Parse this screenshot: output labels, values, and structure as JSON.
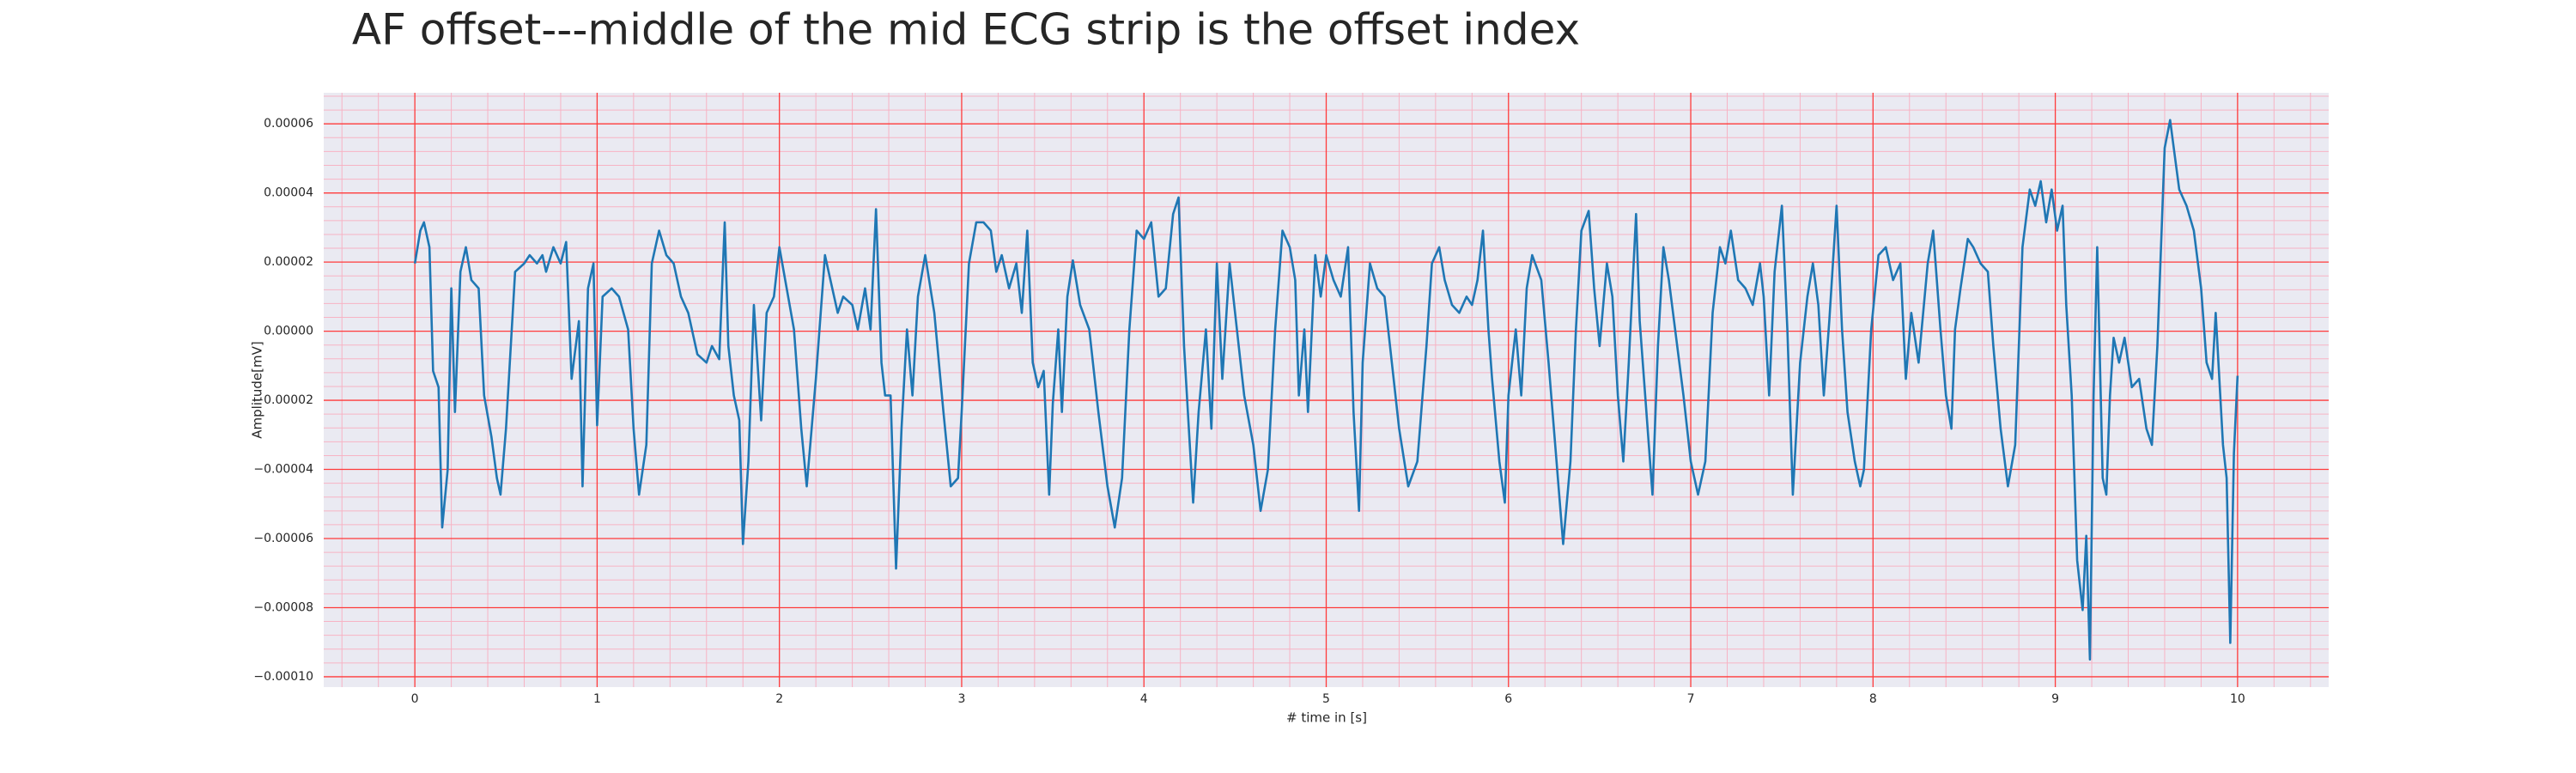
{
  "chart_data": {
    "type": "line",
    "title": "AF offset---middle of the mid ECG strip is the offset index",
    "xlabel": "# time in [s]",
    "ylabel": "Amplitude[mV]",
    "xlim": [
      -0.5,
      10.5
    ],
    "ylim": [
      -0.000103,
      6.9e-05
    ],
    "xticks": [
      0,
      1,
      2,
      3,
      4,
      5,
      6,
      7,
      8,
      9,
      10
    ],
    "yticks": [
      {
        "value": -0.0001,
        "label": "−0.00010"
      },
      {
        "value": -8e-05,
        "label": "−0.00008"
      },
      {
        "value": -6e-05,
        "label": "−0.00006"
      },
      {
        "value": -4e-05,
        "label": "−0.00004"
      },
      {
        "value": -2e-05,
        "label": "−0.00002"
      },
      {
        "value": 0,
        "label": "0.00000"
      },
      2e-05,
      4e-05,
      6e-05
    ],
    "grid": true,
    "minor_grid": true,
    "background": "#eaeaf2",
    "grid_color": "#ff3b3b",
    "minor_grid_color": "#f7b3c4",
    "series": [
      {
        "color": "#1f77b4",
        "x": [
          0,
          0.03,
          0.05,
          0.08,
          0.1,
          0.13,
          0.15,
          0.18,
          0.2,
          0.22,
          0.25,
          0.28,
          0.31,
          0.35,
          0.38,
          0.42,
          0.45,
          0.47,
          0.5,
          0.55,
          0.6,
          0.63,
          0.67,
          0.7,
          0.72,
          0.76,
          0.8,
          0.83,
          0.86,
          0.9,
          0.92,
          0.95,
          0.98,
          1.0,
          1.03,
          1.08,
          1.12,
          1.17,
          1.2,
          1.23,
          1.27,
          1.3,
          1.34,
          1.38,
          1.42,
          1.46,
          1.5,
          1.55,
          1.6,
          1.63,
          1.67,
          1.7,
          1.72,
          1.75,
          1.78,
          1.8,
          1.83,
          1.86,
          1.9,
          1.93,
          1.97,
          2.0,
          2.04,
          2.08,
          2.12,
          2.15,
          2.2,
          2.25,
          2.28,
          2.32,
          2.35,
          2.4,
          2.43,
          2.47,
          2.5,
          2.53,
          2.56,
          2.58,
          2.61,
          2.64,
          2.67,
          2.7,
          2.73,
          2.76,
          2.8,
          2.85,
          2.9,
          2.94,
          2.98,
          3.0,
          3.04,
          3.08,
          3.12,
          3.16,
          3.19,
          3.22,
          3.26,
          3.3,
          3.33,
          3.36,
          3.39,
          3.42,
          3.45,
          3.48,
          3.5,
          3.53,
          3.55,
          3.58,
          3.61,
          3.65,
          3.7,
          3.75,
          3.8,
          3.84,
          3.88,
          3.92,
          3.96,
          4.0,
          4.04,
          4.08,
          4.12,
          4.16,
          4.19,
          4.22,
          4.27,
          4.3,
          4.34,
          4.37,
          4.4,
          4.43,
          4.47,
          4.5,
          4.55,
          4.6,
          4.64,
          4.68,
          4.72,
          4.76,
          4.8,
          4.83,
          4.85,
          4.88,
          4.9,
          4.94,
          4.97,
          5.0,
          5.04,
          5.08,
          5.12,
          5.15,
          5.18,
          5.2,
          5.24,
          5.28,
          5.32,
          5.35,
          5.4,
          5.45,
          5.5,
          5.55,
          5.58,
          5.62,
          5.65,
          5.69,
          5.73,
          5.77,
          5.8,
          5.83,
          5.86,
          5.89,
          5.91,
          5.95,
          5.98,
          6.0,
          6.04,
          6.07,
          6.1,
          6.13,
          6.18,
          6.22,
          6.26,
          6.3,
          6.34,
          6.37,
          6.4,
          6.44,
          6.47,
          6.5,
          6.54,
          6.57,
          6.6,
          6.63,
          6.66,
          6.7,
          6.72,
          6.75,
          6.79,
          6.82,
          6.85,
          6.88,
          6.92,
          6.96,
          7.0,
          7.04,
          7.08,
          7.12,
          7.16,
          7.19,
          7.22,
          7.26,
          7.3,
          7.34,
          7.38,
          7.4,
          7.43,
          7.46,
          7.5,
          7.53,
          7.56,
          7.6,
          7.64,
          7.67,
          7.7,
          7.73,
          7.76,
          7.8,
          7.83,
          7.86,
          7.9,
          7.93,
          7.95,
          7.99,
          8.03,
          8.07,
          8.11,
          8.15,
          8.18,
          8.21,
          8.25,
          8.3,
          8.33,
          8.37,
          8.4,
          8.43,
          8.45,
          8.48,
          8.52,
          8.55,
          8.59,
          8.63,
          8.66,
          8.7,
          8.74,
          8.78,
          8.82,
          8.86,
          8.89,
          8.92,
          8.95,
          8.98,
          9.01,
          9.04,
          9.06,
          9.09,
          9.12,
          9.15,
          9.17,
          9.19,
          9.21,
          9.23,
          9.26,
          9.28,
          9.3,
          9.32,
          9.35,
          9.38,
          9.42,
          9.46,
          9.5,
          9.53,
          9.56,
          9.6,
          9.63,
          9.65,
          9.68,
          9.72,
          9.76,
          9.8,
          9.83,
          9.86,
          9.88,
          9.92,
          9.94,
          9.96,
          9.98,
          10.0
        ],
        "values": [
          1.96e-05,
          2.91e-05,
          3.15e-05,
          2.43e-05,
          -1.15e-05,
          -1.62e-05,
          -5.68e-05,
          -4.01e-05,
          1.24e-05,
          -2.34e-05,
          1.72e-05,
          2.43e-05,
          1.48e-05,
          1.24e-05,
          -1.86e-05,
          -3.05e-05,
          -4.25e-05,
          -4.73e-05,
          -2.82e-05,
          1.72e-05,
          1.96e-05,
          2.2e-05,
          1.96e-05,
          2.2e-05,
          1.72e-05,
          2.43e-05,
          1.96e-05,
          2.58e-05,
          -1.38e-05,
          2.9e-06,
          -4.49e-05,
          1.24e-05,
          1.96e-05,
          -2.72e-05,
          1e-05,
          1.24e-05,
          1e-05,
          5e-07,
          -2.82e-05,
          -4.73e-05,
          -3.29e-05,
          1.96e-05,
          2.91e-05,
          2.2e-05,
          1.96e-05,
          1e-05,
          5.3e-06,
          -6.7e-06,
          -9.1e-06,
          -4.3e-06,
          -8.1e-06,
          3.15e-05,
          -4.3e-06,
          -1.86e-05,
          -2.58e-05,
          -6.16e-05,
          -3.77e-05,
          7.6e-06,
          -2.58e-05,
          5.3e-06,
          1e-05,
          2.43e-05,
          1.24e-05,
          5e-07,
          -2.82e-05,
          -4.49e-05,
          -1.38e-05,
          2.2e-05,
          1.48e-05,
          5.3e-06,
          1e-05,
          7.6e-06,
          5e-07,
          1.24e-05,
          5e-07,
          3.53e-05,
          -9.1e-06,
          -1.86e-05,
          -1.86e-05,
          -6.87e-05,
          -2.82e-05,
          5e-07,
          -1.86e-05,
          1e-05,
          2.2e-05,
          5.3e-06,
          -2.34e-05,
          -4.49e-05,
          -4.25e-05,
          -2.34e-05,
          1.96e-05,
          3.15e-05,
          3.15e-05,
          2.91e-05,
          1.72e-05,
          2.2e-05,
          1.24e-05,
          1.96e-05,
          5.3e-06,
          2.91e-05,
          -9.1e-06,
          -1.62e-05,
          -1.15e-05,
          -4.73e-05,
          -2.1e-05,
          5e-07,
          -2.34e-05,
          1e-05,
          2.05e-05,
          7.6e-06,
          5e-07,
          -2.34e-05,
          -4.49e-05,
          -5.68e-05,
          -4.25e-05,
          5e-07,
          2.91e-05,
          2.67e-05,
          3.15e-05,
          1e-05,
          1.24e-05,
          3.39e-05,
          3.87e-05,
          -4.3e-06,
          -4.96e-05,
          -2.34e-05,
          5e-07,
          -2.82e-05,
          1.96e-05,
          -1.38e-05,
          1.96e-05,
          5.3e-06,
          -1.86e-05,
          -3.29e-05,
          -5.2e-05,
          -4.01e-05,
          5e-07,
          2.91e-05,
          2.43e-05,
          1.48e-05,
          -1.86e-05,
          5e-07,
          -2.34e-05,
          2.2e-05,
          1e-05,
          2.2e-05,
          1.48e-05,
          1e-05,
          2.43e-05,
          -2.34e-05,
          -5.2e-05,
          -9.1e-06,
          1.96e-05,
          1.24e-05,
          1e-05,
          -4.3e-06,
          -2.82e-05,
          -4.49e-05,
          -3.77e-05,
          -4.3e-06,
          1.96e-05,
          2.43e-05,
          1.48e-05,
          7.6e-06,
          5.3e-06,
          1e-05,
          7.6e-06,
          1.48e-05,
          2.91e-05,
          5e-07,
          -1.38e-05,
          -3.77e-05,
          -4.96e-05,
          -1.86e-05,
          5e-07,
          -1.86e-05,
          1.24e-05,
          2.2e-05,
          1.48e-05,
          -9.1e-06,
          -3.53e-05,
          -6.16e-05,
          -3.77e-05,
          5e-07,
          2.91e-05,
          3.48e-05,
          1.24e-05,
          -4.3e-06,
          1.96e-05,
          1e-05,
          -1.86e-05,
          -3.77e-05,
          -9.1e-06,
          3.39e-05,
          2.9e-06,
          -1.86e-05,
          -4.73e-05,
          -4.3e-06,
          2.43e-05,
          1.48e-05,
          -1.9e-06,
          -1.86e-05,
          -3.77e-05,
          -4.73e-05,
          -3.77e-05,
          5.3e-06,
          2.43e-05,
          1.96e-05,
          2.91e-05,
          1.48e-05,
          1.24e-05,
          7.6e-06,
          1.96e-05,
          1e-05,
          -1.86e-05,
          1.72e-05,
          3.63e-05,
          5e-07,
          -4.73e-05,
          -9.1e-06,
          1e-05,
          1.96e-05,
          7.6e-06,
          -1.86e-05,
          2.9e-06,
          3.63e-05,
          5e-07,
          -2.34e-05,
          -3.77e-05,
          -4.49e-05,
          -4.01e-05,
          5e-07,
          2.2e-05,
          2.43e-05,
          1.48e-05,
          1.96e-05,
          -1.38e-05,
          5.3e-06,
          -9.1e-06,
          1.96e-05,
          2.91e-05,
          5e-07,
          -1.86e-05,
          -2.82e-05,
          5e-07,
          1.24e-05,
          2.67e-05,
          2.43e-05,
          1.96e-05,
          1.72e-05,
          -4.3e-06,
          -2.82e-05,
          -4.49e-05,
          -3.29e-05,
          2.43e-05,
          4.1e-05,
          3.63e-05,
          4.34e-05,
          3.15e-05,
          4.1e-05,
          2.91e-05,
          3.63e-05,
          7.6e-06,
          -1.86e-05,
          -6.63e-05,
          -8.07e-05,
          -5.92e-05,
          -9.5e-05,
          -1.86e-05,
          2.43e-05,
          -4.25e-05,
          -4.73e-05,
          -1.86e-05,
          -1.9e-06,
          -9.1e-06,
          -1.9e-06,
          -1.62e-05,
          -1.38e-05,
          -2.82e-05,
          -3.29e-05,
          -4.3e-06,
          5.3e-05,
          6.11e-05,
          5.3e-05,
          4.1e-05,
          3.63e-05,
          2.91e-05,
          1.24e-05,
          -9.1e-06,
          -1.38e-05,
          5.3e-06,
          -3.29e-05,
          -4.25e-05,
          -9.02e-05,
          -3.53e-05,
          -1.29e-05
        ]
      }
    ]
  }
}
